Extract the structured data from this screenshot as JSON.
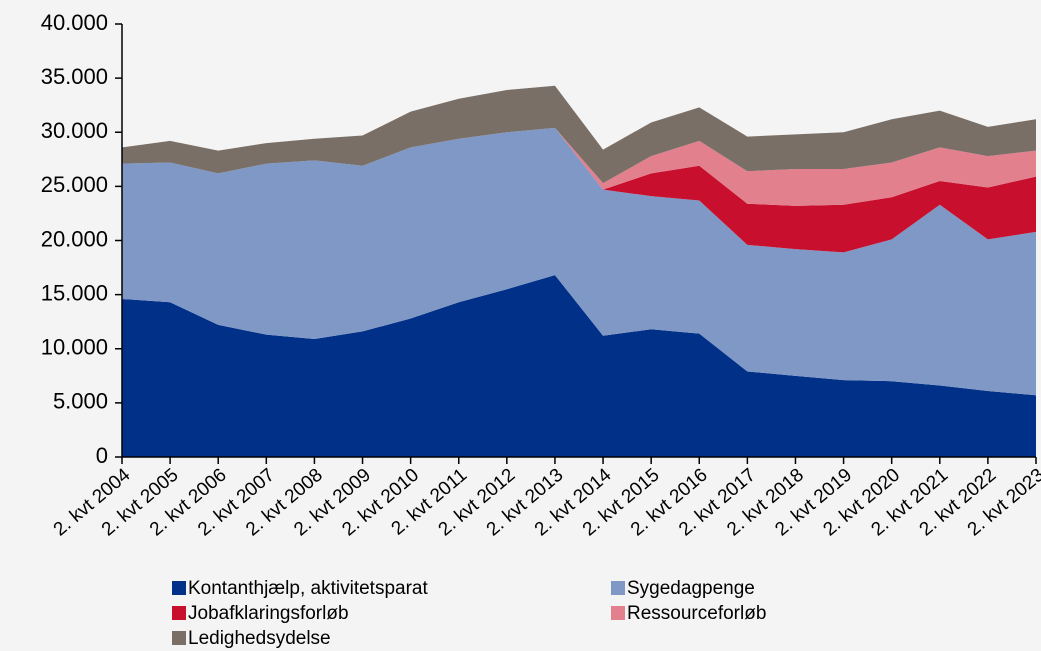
{
  "chart_data": {
    "type": "stacked_area",
    "categories": [
      "2. kvt 2004",
      "2. kvt 2005",
      "2. kvt 2006",
      "2. kvt 2007",
      "2. kvt 2008",
      "2. kvt 2009",
      "2. kvt 2010",
      "2. kvt 2011",
      "2. kvt 2012",
      "2. kvt 2013",
      "2. kvt 2014",
      "2. kvt 2015",
      "2. kvt 2016",
      "2. kvt 2017",
      "2. kvt 2018",
      "2. kvt 2019",
      "2. kvt 2020",
      "2. kvt 2021",
      "2. kvt 2022",
      "2. kvt 2023"
    ],
    "series": [
      {
        "name": "Kontanthjælp, aktivitetsparat",
        "color": "#003087",
        "values": [
          14600,
          14300,
          12200,
          11300,
          10900,
          11600,
          12800,
          14300,
          15500,
          16800,
          11200,
          11800,
          11400,
          7900,
          7500,
          7100,
          7000,
          6600,
          6100,
          5700
        ]
      },
      {
        "name": "Sygedagpenge",
        "color": "#7f98c6",
        "values": [
          12500,
          12900,
          14000,
          15800,
          16500,
          15300,
          15800,
          15100,
          14500,
          13600,
          13500,
          12300,
          12300,
          11700,
          11700,
          11800,
          13100,
          16700,
          14000,
          15100
        ]
      },
      {
        "name": "Jobafklaringsforløb",
        "color": "#c8102e",
        "values": [
          0,
          0,
          0,
          0,
          0,
          0,
          0,
          0,
          0,
          0,
          0,
          2100,
          3200,
          3800,
          4000,
          4400,
          3900,
          2200,
          4800,
          5100
        ]
      },
      {
        "name": "Ressourceforløb",
        "color": "#e2808e",
        "values": [
          0,
          0,
          0,
          0,
          0,
          0,
          0,
          0,
          0,
          0,
          600,
          1600,
          2300,
          3000,
          3400,
          3300,
          3200,
          3100,
          2900,
          2400
        ]
      },
      {
        "name": "Ledighedsydelse",
        "color": "#7a6f66",
        "values": [
          1500,
          2000,
          2100,
          1900,
          2000,
          2800,
          3300,
          3700,
          3900,
          3900,
          3100,
          3100,
          3100,
          3200,
          3200,
          3400,
          4000,
          3400,
          2700,
          2900
        ]
      }
    ],
    "ylim": [
      0,
      40000
    ],
    "yticks": [
      0,
      {
        "value": 5000,
        "label": "5.000"
      },
      {
        "value": 10000,
        "label": "10.000"
      },
      {
        "value": 15000,
        "label": "15.000"
      },
      {
        "value": 20000,
        "label": "20.000"
      },
      {
        "value": 25000,
        "label": "25.000"
      },
      {
        "value": 30000,
        "label": "30.000"
      },
      {
        "value": 35000,
        "label": "35.000"
      },
      {
        "value": 40000,
        "label": "40.000"
      }
    ],
    "grid": false,
    "legend": "bottom"
  }
}
